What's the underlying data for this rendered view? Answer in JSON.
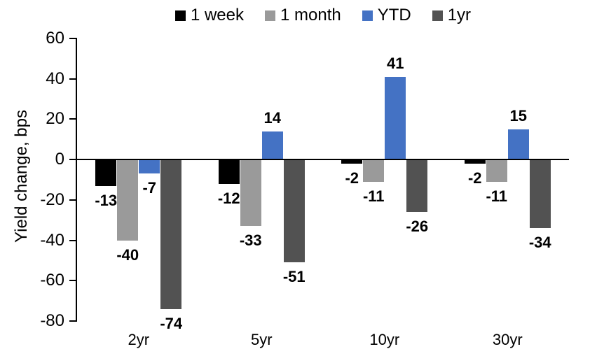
{
  "chart_data": {
    "type": "bar",
    "title": "",
    "xlabel": "",
    "ylabel": "Yield change, bps",
    "categories": [
      "2yr",
      "5yr",
      "10yr",
      "30yr"
    ],
    "series": [
      {
        "name": "1 week",
        "color": "#000000",
        "values": [
          -13,
          -12,
          -2,
          -2
        ]
      },
      {
        "name": "1 month",
        "color": "#9A9A9A",
        "values": [
          -40,
          -33,
          -11,
          -11
        ]
      },
      {
        "name": "YTD",
        "color": "#4472C4",
        "values": [
          -7,
          14,
          41,
          15
        ]
      },
      {
        "name": "1yr",
        "color": "#525252",
        "values": [
          -74,
          -51,
          -26,
          -34
        ]
      }
    ],
    "ylim": [
      -80,
      60
    ],
    "yticks": [
      60,
      40,
      20,
      0,
      -20,
      -40,
      -60,
      -80
    ],
    "grid": false,
    "legend_position": "top",
    "data_labels": true,
    "axis_color": "#000000",
    "background_color": "#FFFFFF"
  }
}
